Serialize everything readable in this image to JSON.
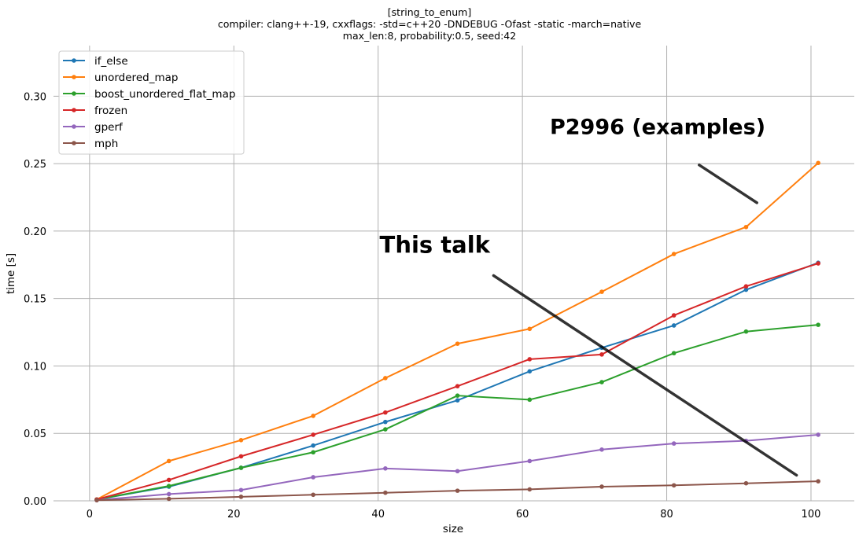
{
  "chart_data": {
    "type": "line",
    "title_lines": [
      "[string_to_enum]",
      "compiler: clang++-19, cxxflags: -std=c++20 -DNDEBUG -Ofast -static -march=native",
      "max_len:8, probability:0.5, seed:42"
    ],
    "xlabel": "size",
    "ylabel": "time [s]",
    "xlim": [
      -5,
      106
    ],
    "ylim": [
      0,
      0.3375
    ],
    "xticks": [
      0,
      20,
      40,
      60,
      80,
      100
    ],
    "yticks": [
      0.0,
      0.05,
      0.1,
      0.15,
      0.2,
      0.25,
      0.3
    ],
    "grid": true,
    "legend_position": "top-left",
    "x": [
      1,
      11,
      21,
      31,
      41,
      51,
      61,
      71,
      81,
      91,
      101
    ],
    "series": [
      {
        "name": "if_else",
        "color": "#1f77b4",
        "values": [
          0.001,
          0.0105,
          0.0245,
          0.041,
          0.0585,
          0.0745,
          0.096,
          0.1135,
          0.13,
          0.1565,
          0.1765
        ]
      },
      {
        "name": "unordered_map",
        "color": "#ff7f0e",
        "values": [
          0.001,
          0.0295,
          0.045,
          0.063,
          0.091,
          0.1165,
          0.1275,
          0.155,
          0.183,
          0.203,
          0.2505
        ]
      },
      {
        "name": "boost_unordered_flat_map",
        "color": "#2ca02c",
        "values": [
          0.001,
          0.011,
          0.0245,
          0.036,
          0.053,
          0.078,
          0.075,
          0.088,
          0.1095,
          0.1255,
          0.1305
        ]
      },
      {
        "name": "frozen",
        "color": "#d62728",
        "values": [
          0.001,
          0.0155,
          0.033,
          0.049,
          0.0655,
          0.085,
          0.105,
          0.1085,
          0.1375,
          0.159,
          0.176
        ]
      },
      {
        "name": "gperf",
        "color": "#9467bd",
        "values": [
          0.0005,
          0.005,
          0.008,
          0.0175,
          0.024,
          0.022,
          0.0295,
          0.038,
          0.0425,
          0.0445,
          0.049
        ]
      },
      {
        "name": "mph",
        "color": "#8c564b",
        "values": [
          0.0005,
          0.0015,
          0.003,
          0.0045,
          0.006,
          0.0075,
          0.0085,
          0.0105,
          0.0115,
          0.013,
          0.0145
        ]
      }
    ],
    "annotations": [
      {
        "text": "P2996 (examples)",
        "x": 63.8,
        "y": 0.272,
        "arrow_from": [
          84.5,
          0.249
        ],
        "arrow_to": [
          92.5,
          0.221
        ]
      },
      {
        "text": "This talk",
        "x": 40.2,
        "y": 0.184,
        "arrow_from": [
          56,
          0.167
        ],
        "arrow_to": [
          98,
          0.019
        ]
      }
    ]
  }
}
